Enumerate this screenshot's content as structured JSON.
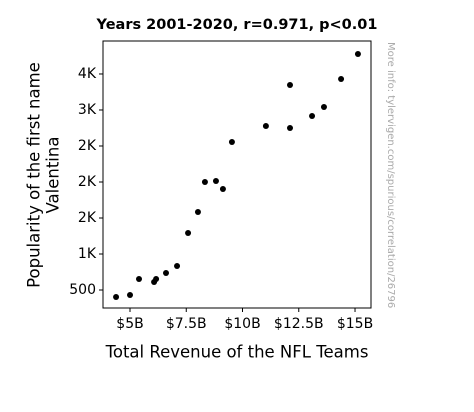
{
  "chart_data": {
    "type": "scatter",
    "title": "Years 2001-2020, r=0.971, p<0.01",
    "x_label": "Total Revenue of the NFL Teams",
    "y_label": [
      "Popularity of the first name",
      "Valentina"
    ],
    "note": "More info: tylervigen.com/spurious/correlation/26796",
    "color": "#000000",
    "x": [
      4.38,
      5.0,
      5.4,
      6.07,
      6.16,
      6.6,
      7.09,
      7.58,
      8.02,
      8.33,
      8.82,
      9.13,
      9.53,
      11.04,
      12.11,
      12.11,
      13.09,
      13.62,
      14.38,
      15.13
    ],
    "values": [
      403,
      431,
      653,
      611,
      653,
      736,
      833,
      1292,
      1583,
      2000,
      2014,
      1903,
      2556,
      2778,
      3347,
      2750,
      2917,
      3042,
      3431,
      3778
    ],
    "xlim": [
      3.8,
      15.71
    ],
    "ylim": [
      250,
      3958
    ],
    "xticks": [
      {
        "value": 5,
        "label": "$5B"
      },
      {
        "value": 7.5,
        "label": "$7.5B"
      },
      {
        "value": 10,
        "label": "$10B"
      },
      {
        "value": 12.5,
        "label": "$12.5B"
      },
      {
        "value": 15,
        "label": "$15B"
      }
    ],
    "yticks": [
      500,
      {
        "value": 1000,
        "label": "1K"
      },
      {
        "value": 1500,
        "label": "2K"
      },
      {
        "value": 2000,
        "label": "2K"
      },
      {
        "value": 2500,
        "label": "2K"
      },
      {
        "value": 3000,
        "label": "3K"
      },
      {
        "value": 3500,
        "label": "4K"
      }
    ]
  }
}
